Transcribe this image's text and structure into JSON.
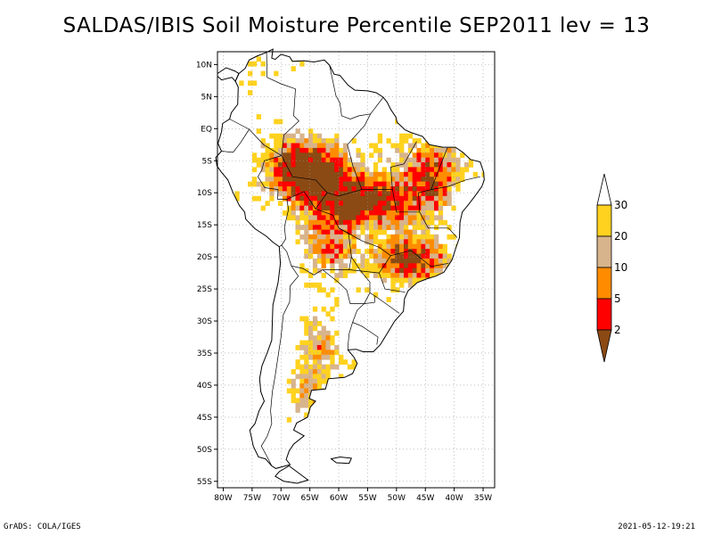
{
  "title": "SALDAS/IBIS Soil Moisture Percentile SEP2011 lev = 13",
  "footer": {
    "left": "GrADS: COLA/IGES",
    "right": "2021-05-12-19:21"
  },
  "map": {
    "lat_labels": [
      "10N",
      "5N",
      "EQ",
      "5S",
      "10S",
      "15S",
      "20S",
      "25S",
      "30S",
      "35S",
      "40S",
      "45S",
      "50S",
      "55S"
    ],
    "lat_values": [
      10,
      5,
      0,
      -5,
      -10,
      -15,
      -20,
      -25,
      -30,
      -35,
      -40,
      -45,
      -50,
      -55
    ],
    "lon_labels": [
      "80W",
      "75W",
      "70W",
      "65W",
      "60W",
      "55W",
      "50W",
      "45W",
      "40W",
      "35W"
    ],
    "lon_values": [
      -80,
      -75,
      -70,
      -65,
      -60,
      -55,
      -50,
      -45,
      -40,
      -35
    ],
    "lon_range": [
      -81,
      -33
    ],
    "lat_range": [
      12,
      -56
    ]
  },
  "colorbar": {
    "labels": [
      "30",
      "20",
      "10",
      "5",
      "2"
    ],
    "colors": [
      "#ffffff",
      "#ffd21f",
      "#d8b48c",
      "#ff8c00",
      "#ff0000",
      "#8b4a14"
    ]
  }
}
